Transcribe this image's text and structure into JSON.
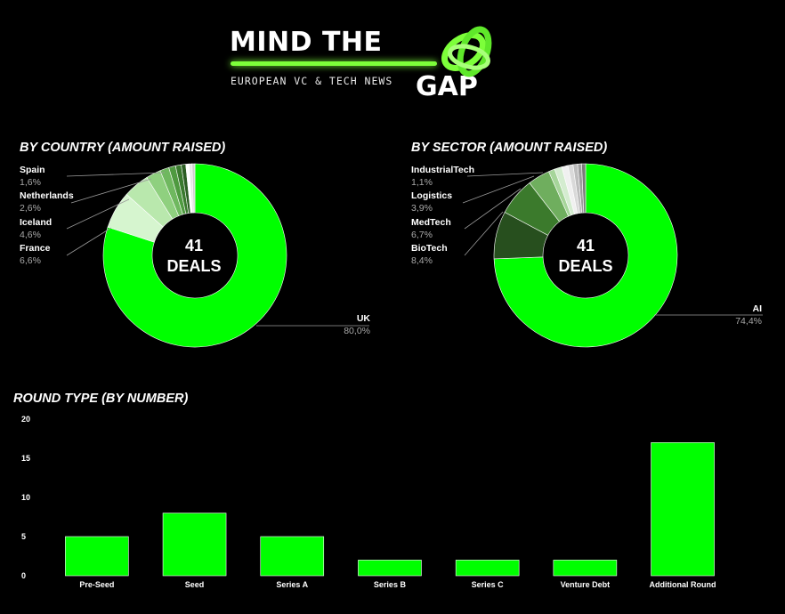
{
  "logo": {
    "line1": "MIND THE",
    "line2": "GAP",
    "tagline": "EUROPEAN VC & TECH NEWS",
    "accent": "#7dff3a"
  },
  "country": {
    "title": "BY COUNTRY (AMOUNT RAISED)",
    "center_number": "41",
    "center_text": "DEALS",
    "labels": {
      "spain": {
        "name": "Spain",
        "pct": "1,6%"
      },
      "netherlands": {
        "name": "Netherlands",
        "pct": "2,6%"
      },
      "iceland": {
        "name": "Iceland",
        "pct": "4,6%"
      },
      "france": {
        "name": "France",
        "pct": "6,6%"
      },
      "uk": {
        "name": "UK",
        "pct": "80,0%"
      }
    }
  },
  "sector": {
    "title": "BY SECTOR (AMOUNT RAISED)",
    "center_number": "41",
    "center_text": "DEALS",
    "labels": {
      "industrialtech": {
        "name": "IndustrialTech",
        "pct": "1,1%"
      },
      "logistics": {
        "name": "Logistics",
        "pct": "3,9%"
      },
      "medtech": {
        "name": "MedTech",
        "pct": "6,7%"
      },
      "biotech": {
        "name": "BioTech",
        "pct": "8,4%"
      },
      "ai": {
        "name": "AI",
        "pct": "74,4%"
      }
    }
  },
  "round": {
    "title": "ROUND TYPE (BY NUMBER)"
  },
  "chart_data": [
    {
      "type": "pie",
      "title": "BY COUNTRY (AMOUNT RAISED)",
      "center_label": "41 DEALS",
      "slices": [
        {
          "label": "UK",
          "value": 80.0,
          "color": "#00ff00"
        },
        {
          "label": "France",
          "value": 6.6,
          "color": "#d6f5cf"
        },
        {
          "label": "Iceland",
          "value": 4.6,
          "color": "#b9e8ad"
        },
        {
          "label": "Netherlands",
          "value": 2.6,
          "color": "#8fd07f"
        },
        {
          "label": "Spain",
          "value": 1.6,
          "color": "#6fb85f"
        },
        {
          "value": 1.2,
          "color": "#4f9a40"
        },
        {
          "value": 1.0,
          "color": "#3a7a2e"
        },
        {
          "value": 0.8,
          "color": "#2c5e23"
        },
        {
          "value": 0.6,
          "color": "#ffffff"
        },
        {
          "value": 0.5,
          "color": "#e6e6e6"
        },
        {
          "value": 0.5,
          "color": "#cccccc"
        }
      ]
    },
    {
      "type": "pie",
      "title": "BY SECTOR (AMOUNT RAISED)",
      "center_label": "41 DEALS",
      "slices": [
        {
          "label": "AI",
          "value": 74.4,
          "color": "#00ff00"
        },
        {
          "label": "BioTech",
          "value": 8.4,
          "color": "#274f1e"
        },
        {
          "label": "MedTech",
          "value": 6.7,
          "color": "#3b7a2c"
        },
        {
          "label": "Logistics",
          "value": 3.9,
          "color": "#6fae5e"
        },
        {
          "label": "IndustrialTech",
          "value": 1.1,
          "color": "#a6d59a"
        },
        {
          "value": 1.3,
          "color": "#d4ecd0"
        },
        {
          "value": 1.1,
          "color": "#f0f0f0"
        },
        {
          "value": 0.9,
          "color": "#d9d9d9"
        },
        {
          "value": 0.8,
          "color": "#bdbdbd"
        },
        {
          "value": 0.7,
          "color": "#9e9e9e"
        },
        {
          "value": 0.7,
          "color": "#7a7a7a"
        }
      ]
    },
    {
      "type": "bar",
      "title": "ROUND TYPE (BY NUMBER)",
      "categories": [
        "Pre-Seed",
        "Seed",
        "Series A",
        "Series B",
        "Series C",
        "Venture Debt",
        "Additional Round"
      ],
      "values": [
        5,
        8,
        5,
        2,
        2,
        2,
        17
      ],
      "yticks": [
        0,
        5,
        10,
        15,
        20
      ],
      "ylim": [
        0,
        20
      ],
      "grid": false,
      "color": "#00ff00"
    }
  ]
}
